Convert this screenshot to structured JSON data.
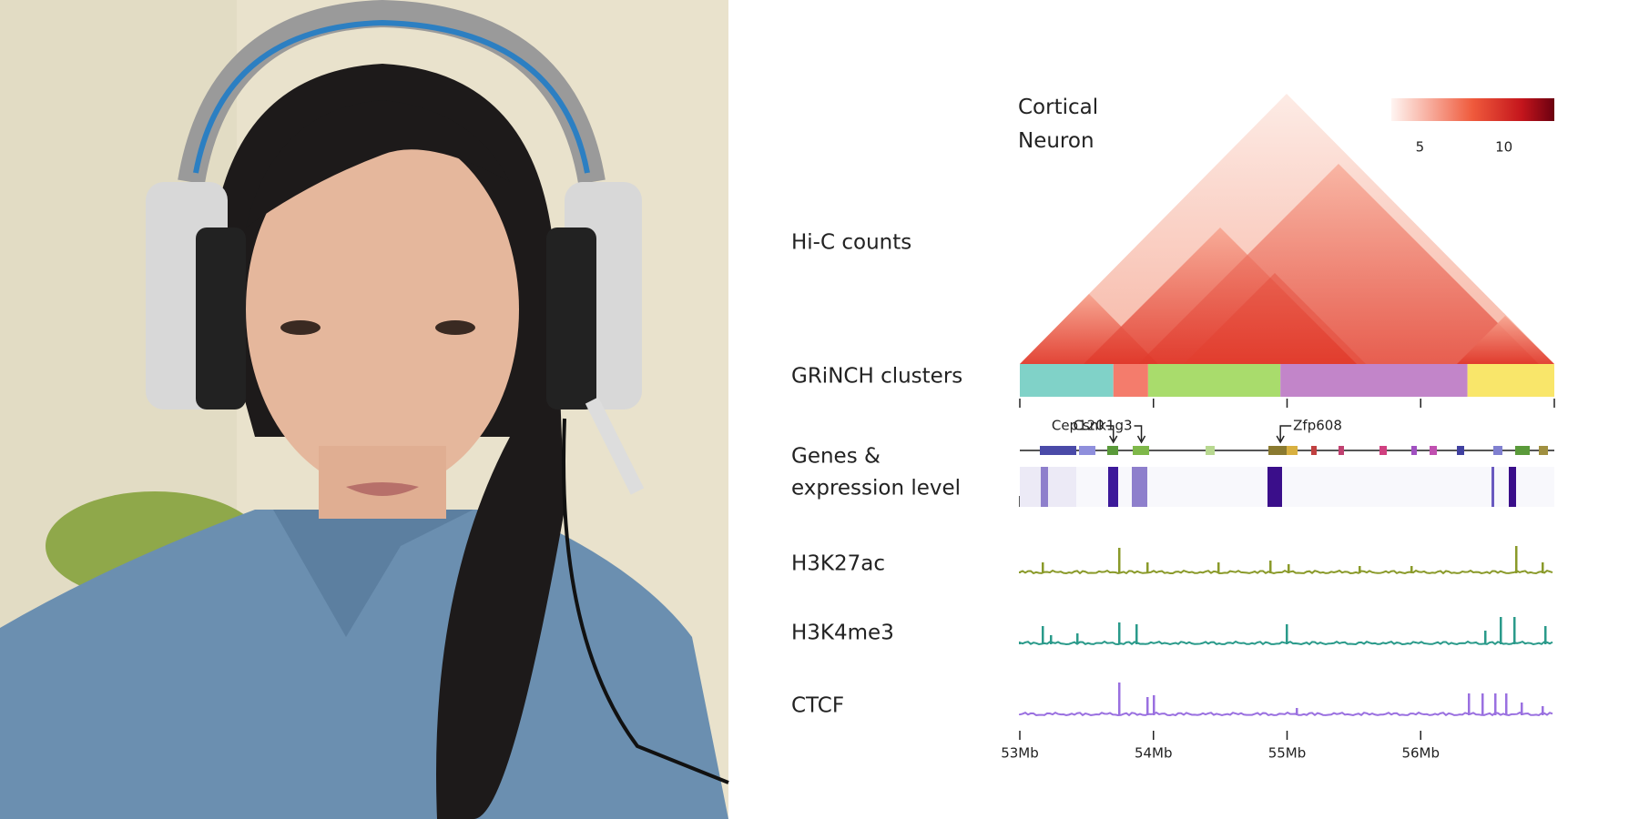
{
  "figure": {
    "title": "Cortical Neuron",
    "colorbar": {
      "lim": [
        3.3,
        13
      ],
      "ticks": [
        5,
        10
      ]
    },
    "track_labels": {
      "hic": "Hi-C counts",
      "clusters": "GRiNCH clusters",
      "genes": [
        "Genes &",
        "expression level"
      ],
      "h3k27ac": "H3K27ac",
      "h3k4me3": "H3K4me3",
      "ctcf": "CTCF"
    },
    "clusters": [
      {
        "start": 53,
        "end": 53.7,
        "color": "#80d2c8"
      },
      {
        "start": 53.7,
        "end": 53.96,
        "color": "#f47c6c"
      },
      {
        "start": 53.96,
        "end": 54.95,
        "color": "#a9dc6c"
      },
      {
        "start": 54.95,
        "end": 56.35,
        "color": "#c285c9"
      },
      {
        "start": 56.35,
        "end": 57,
        "color": "#f9e66a"
      }
    ],
    "genes": [
      {
        "label": "Cep120",
        "position": 53.7
      },
      {
        "label": "Csnk1g3",
        "position": 53.91
      },
      {
        "label": "Zfp608",
        "position": 54.95
      }
    ],
    "xaxis": {
      "xlim": [
        53,
        57
      ],
      "xticks": [
        {
          "value": 53,
          "label": "53Mb"
        },
        {
          "value": 54,
          "label": "54Mb"
        },
        {
          "value": 55,
          "label": "55Mb"
        },
        {
          "value": 56,
          "label": "56Mb"
        }
      ]
    }
  }
}
